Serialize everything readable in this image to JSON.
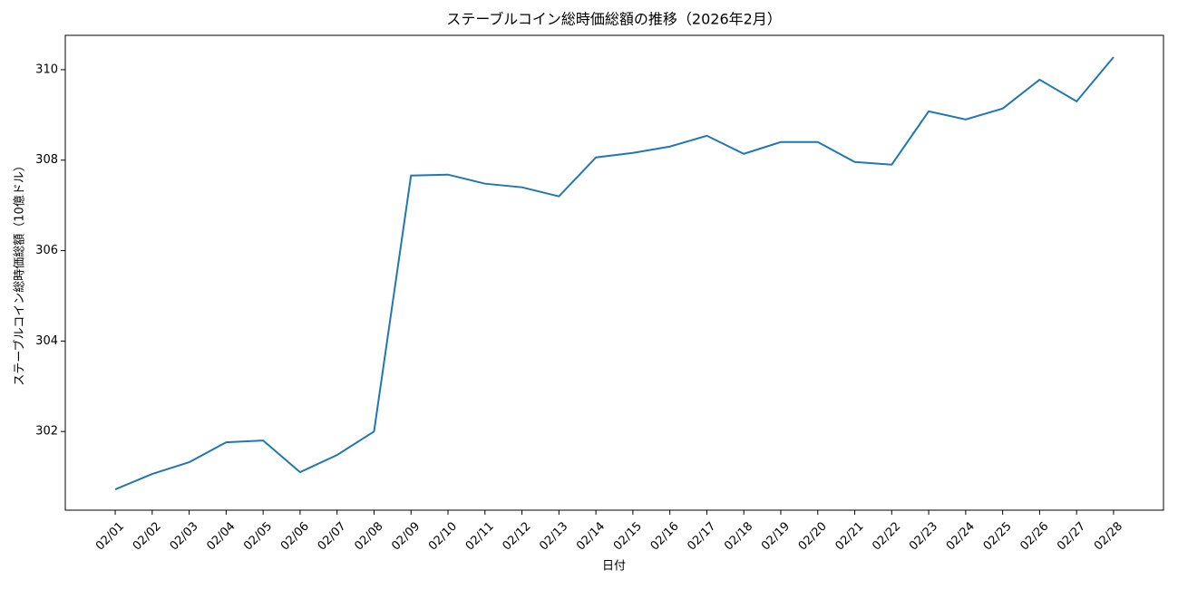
{
  "chart_data": {
    "type": "line",
    "title": "ステーブルコイン総時価総額の推移（2026年2月）",
    "x_label": "日付",
    "y_label": "ステーブルコイン総時価総額（10億ドル）",
    "categories": [
      "02/01",
      "02/02",
      "02/03",
      "02/04",
      "02/05",
      "02/06",
      "02/07",
      "02/08",
      "02/09",
      "02/10",
      "02/11",
      "02/12",
      "02/13",
      "02/14",
      "02/15",
      "02/16",
      "02/17",
      "02/18",
      "02/19",
      "02/20",
      "02/21",
      "02/22",
      "02/23",
      "02/24",
      "02/25",
      "02/26",
      "02/27",
      "02/28"
    ],
    "values": [
      300.72,
      301.06,
      301.32,
      301.76,
      301.8,
      301.1,
      301.48,
      302.0,
      307.66,
      307.68,
      307.48,
      307.4,
      307.2,
      308.06,
      308.16,
      308.3,
      308.54,
      308.14,
      308.4,
      308.4,
      307.96,
      307.9,
      309.08,
      308.9,
      309.14,
      309.78,
      309.3,
      310.28
    ],
    "color": "#1f77b4",
    "ylim": [
      300.26,
      310.76
    ],
    "yticks": [
      302,
      304,
      306,
      308,
      310
    ],
    "grid": false
  }
}
